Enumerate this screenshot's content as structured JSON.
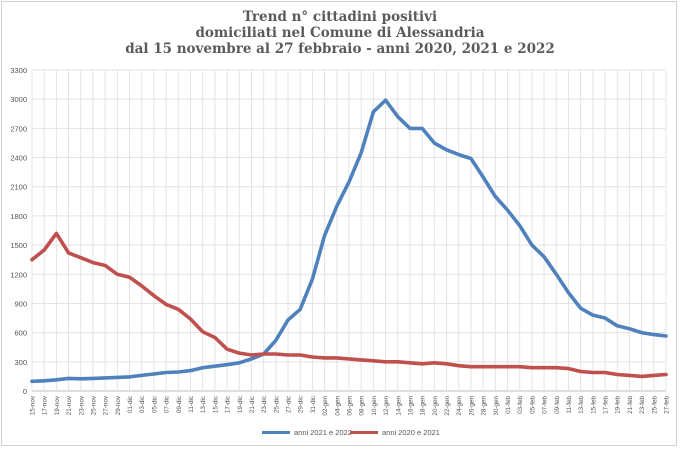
{
  "chart_data": {
    "type": "line",
    "title": [
      "Trend n° cittadini positivi",
      "domiciliati nel Comune di Alessandria",
      "dal 15 novembre al 27 febbraio - anni 2020, 2021 e 2022"
    ],
    "xlabel": "",
    "ylabel": "",
    "ylim": [
      0,
      3300
    ],
    "yticks": [
      0,
      300,
      600,
      900,
      1200,
      1500,
      1800,
      2100,
      2400,
      2700,
      3000,
      3300
    ],
    "grid": true,
    "legend_position": "bottom",
    "x_tick_labels": [
      "15-nov",
      "17-nov",
      "19-nov",
      "21-nov",
      "23-nov",
      "25-nov",
      "27-nov",
      "29-nov",
      "01-dic",
      "03-dic",
      "05-dic",
      "07-dic",
      "09-dic",
      "11-dic",
      "13-dic",
      "15-dic",
      "17-dic",
      "19-dic",
      "21-dic",
      "23-dic",
      "25-dic",
      "27-dic",
      "29-dic",
      "31-dic",
      "02-gen",
      "04-gen",
      "06-gen",
      "08-gen",
      "10-gen",
      "12-gen",
      "14-gen",
      "16-gen",
      "18-gen",
      "20-gen",
      "22-gen",
      "24-gen",
      "26-gen",
      "28-gen",
      "30-gen",
      "01-feb",
      "03-feb",
      "05-feb",
      "07-feb",
      "09-feb",
      "11-feb",
      "13-feb",
      "15-feb",
      "17-feb",
      "19-feb",
      "21-feb",
      "23-feb",
      "25-feb",
      "27-feb"
    ],
    "series": [
      {
        "name": "anni 2021 e 2022",
        "color": "#4f81bd",
        "x": [
          0,
          2,
          4,
          6,
          8,
          10,
          12,
          14,
          16,
          18,
          20,
          22,
          24,
          26,
          28,
          30,
          32,
          34,
          36,
          38,
          40,
          42,
          44,
          46,
          48,
          50,
          52,
          54,
          56,
          58,
          60,
          62,
          64,
          66,
          68,
          70,
          72,
          74,
          76,
          78,
          80,
          82,
          84,
          86,
          88,
          90,
          92,
          94,
          96,
          98,
          100,
          102,
          104
        ],
        "values": [
          100,
          105,
          115,
          130,
          125,
          130,
          135,
          140,
          145,
          160,
          175,
          190,
          195,
          210,
          240,
          255,
          270,
          290,
          330,
          380,
          520,
          730,
          840,
          1150,
          1600,
          1900,
          2150,
          2450,
          2870,
          2990,
          2820,
          2700,
          2700,
          2550,
          2480,
          2430,
          2390,
          2200,
          2000,
          1860,
          1700,
          1500,
          1380,
          1200,
          1010,
          850,
          780,
          750,
          670,
          640,
          600,
          580,
          565
        ]
      },
      {
        "name": "anni 2020 e 2021",
        "color": "#c0504d",
        "x": [
          0,
          2,
          4,
          6,
          8,
          10,
          12,
          14,
          16,
          18,
          20,
          22,
          24,
          26,
          28,
          30,
          32,
          34,
          36,
          38,
          40,
          42,
          44,
          46,
          48,
          50,
          52,
          54,
          56,
          58,
          60,
          62,
          64,
          66,
          68,
          70,
          72,
          74,
          76,
          78,
          80,
          82,
          84,
          86,
          88,
          90,
          92,
          94,
          96,
          98,
          100,
          102,
          104
        ],
        "values": [
          1350,
          1450,
          1620,
          1420,
          1370,
          1320,
          1290,
          1200,
          1170,
          1080,
          980,
          890,
          840,
          740,
          610,
          550,
          430,
          390,
          370,
          380,
          380,
          370,
          370,
          350,
          340,
          340,
          330,
          320,
          310,
          300,
          300,
          290,
          280,
          290,
          280,
          260,
          250,
          250,
          250,
          250,
          250,
          240,
          240,
          240,
          230,
          200,
          190,
          190,
          170,
          160,
          150,
          160,
          170
        ]
      }
    ]
  }
}
